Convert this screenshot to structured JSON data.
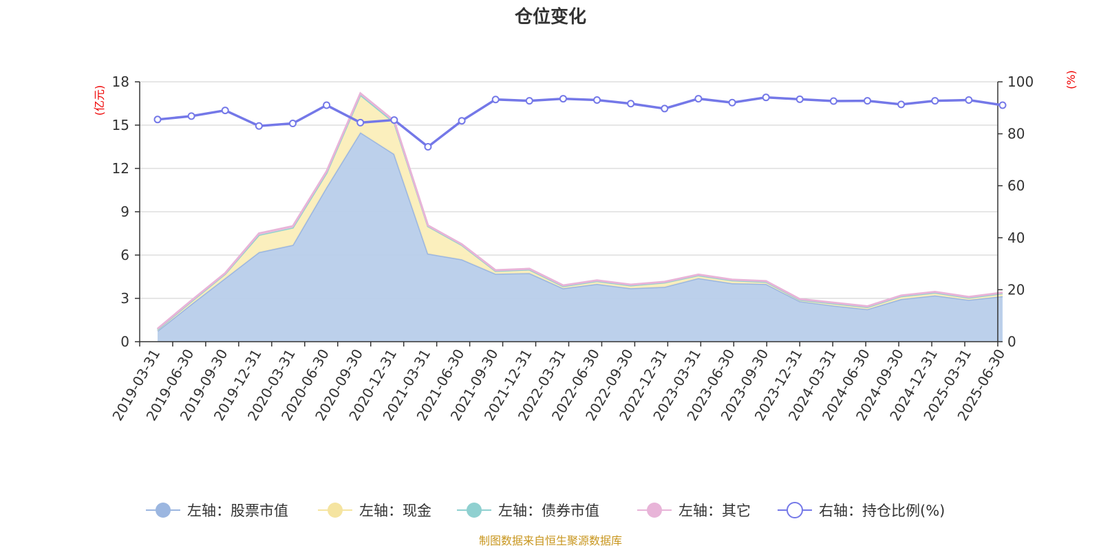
{
  "chart_data": {
    "type": "area",
    "title": "仓位变化",
    "left_axis": {
      "unit": "(亿元)",
      "ticks": [
        "0",
        "3",
        "6",
        "9",
        "12",
        "15",
        "18"
      ],
      "ylim": [
        0,
        18
      ]
    },
    "right_axis": {
      "unit": "(%)",
      "ticks": [
        "0",
        "20",
        "40",
        "60",
        "80",
        "100"
      ],
      "ylim": [
        0,
        100
      ]
    },
    "categories": [
      "2019-03-31",
      "2019-06-30",
      "2019-09-30",
      "2019-12-31",
      "2020-03-31",
      "2020-06-30",
      "2020-09-30",
      "2020-12-31",
      "2021-03-31",
      "2021-06-30",
      "2021-09-30",
      "2021-12-31",
      "2022-03-31",
      "2022-06-30",
      "2022-09-30",
      "2022-12-31",
      "2023-03-31",
      "2023-06-30",
      "2023-09-30",
      "2023-12-31",
      "2024-03-31",
      "2024-06-30",
      "2024-09-30",
      "2024-12-31",
      "2025-03-31",
      "2025-06-30"
    ],
    "series": [
      {
        "name": "左轴：股票市值",
        "axis": "left",
        "color": "#9bb6e0",
        "fill": "#b8cdea",
        "values": [
          0.75,
          2.6,
          4.4,
          6.2,
          6.7,
          10.7,
          14.5,
          13.0,
          6.1,
          5.7,
          4.7,
          4.75,
          3.7,
          4.0,
          3.7,
          3.8,
          4.4,
          4.05,
          4.0,
          2.8,
          2.5,
          2.25,
          2.95,
          3.2,
          2.9,
          3.15
        ]
      },
      {
        "name": "左轴：现金",
        "axis": "left",
        "color": "#f5e4a0",
        "fill": "#fbeeb9",
        "values": [
          0.1,
          0.2,
          0.3,
          1.2,
          1.2,
          1.0,
          2.6,
          2.2,
          1.9,
          1.0,
          0.2,
          0.25,
          0.15,
          0.2,
          0.2,
          0.3,
          0.2,
          0.2,
          0.15,
          0.1,
          0.15,
          0.15,
          0.2,
          0.2,
          0.15,
          0.2
        ]
      },
      {
        "name": "左轴：债券市值",
        "axis": "left",
        "color": "#8fd0d0",
        "fill": "#a8dcdc",
        "values": [
          0,
          0,
          0,
          0,
          0,
          0,
          0,
          0,
          0,
          0,
          0,
          0,
          0,
          0,
          0,
          0,
          0,
          0,
          0,
          0,
          0,
          0,
          0,
          0,
          0,
          0
        ]
      },
      {
        "name": "左轴：其它",
        "axis": "left",
        "color": "#e8b4d8",
        "fill": "#f0cce4",
        "values": [
          0.05,
          0.05,
          0.05,
          0.1,
          0.1,
          0.1,
          0.1,
          0.1,
          0.05,
          0.05,
          0.05,
          0.05,
          0.05,
          0.05,
          0.05,
          0.05,
          0.05,
          0.05,
          0.05,
          0.05,
          0.05,
          0.05,
          0.05,
          0.05,
          0.05,
          0.05
        ]
      },
      {
        "name": "右轴：持仓比例(%)",
        "axis": "right",
        "color": "#7478e8",
        "fill": "#ffffff",
        "values": [
          85.5,
          86.8,
          89.0,
          83.0,
          84.0,
          91.0,
          84.3,
          85.3,
          75.0,
          85.0,
          93.2,
          92.7,
          93.5,
          93.0,
          91.6,
          89.7,
          93.5,
          92.0,
          94.0,
          93.3,
          92.6,
          92.7,
          91.3,
          92.7,
          93.0,
          91.0
        ]
      }
    ],
    "grid": true,
    "legend_position": "bottom"
  },
  "source_note": "制图数据来自恒生聚源数据库"
}
